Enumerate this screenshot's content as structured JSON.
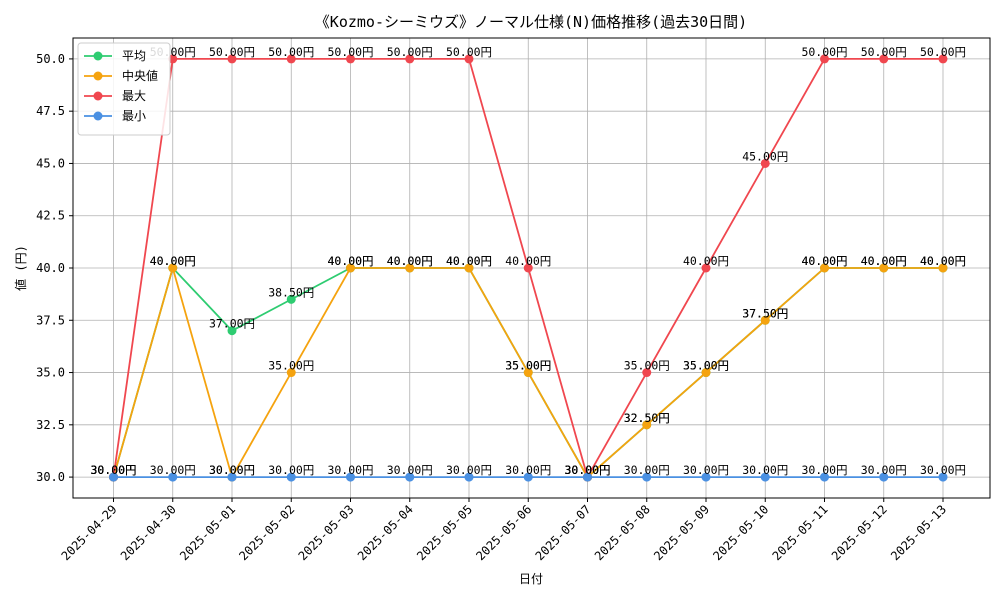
{
  "chart_data": {
    "type": "line",
    "title": "《Kozmo-シーミウズ》ノーマル仕様(N)価格推移(過去30日間)",
    "xlabel": "日付",
    "ylabel": "値 (円)",
    "ylim": [
      29.0,
      51.0
    ],
    "yticks": [
      30.0,
      32.5,
      35.0,
      37.5,
      40.0,
      42.5,
      45.0,
      47.5,
      50.0
    ],
    "grid": true,
    "legend_position": "top-left",
    "value_suffix": "円",
    "categories": [
      "2025-04-29",
      "2025-04-30",
      "2025-05-01",
      "2025-05-02",
      "2025-05-03",
      "2025-05-04",
      "2025-05-05",
      "2025-05-06",
      "2025-05-07",
      "2025-05-08",
      "2025-05-09",
      "2025-05-10",
      "2025-05-11",
      "2025-05-12",
      "2025-05-13"
    ],
    "series": [
      {
        "name": "平均",
        "color": "#2ecc71",
        "values": [
          30,
          40,
          37,
          38.5,
          40,
          40,
          40,
          35,
          30,
          32.5,
          35,
          37.5,
          40,
          40,
          40
        ]
      },
      {
        "name": "中央値",
        "color": "#f5a30f",
        "values": [
          30,
          40,
          30,
          35,
          40,
          40,
          40,
          35,
          30,
          32.5,
          35,
          37.5,
          40,
          40,
          40
        ]
      },
      {
        "name": "最大",
        "color": "#f0474f",
        "values": [
          30,
          50,
          50,
          50,
          50,
          50,
          50,
          40,
          30,
          35,
          40,
          45,
          50,
          50,
          50
        ]
      },
      {
        "name": "最小",
        "color": "#4a90e2",
        "values": [
          30,
          30,
          30,
          30,
          30,
          30,
          30,
          30,
          30,
          30,
          30,
          30,
          30,
          30,
          30
        ]
      }
    ]
  }
}
